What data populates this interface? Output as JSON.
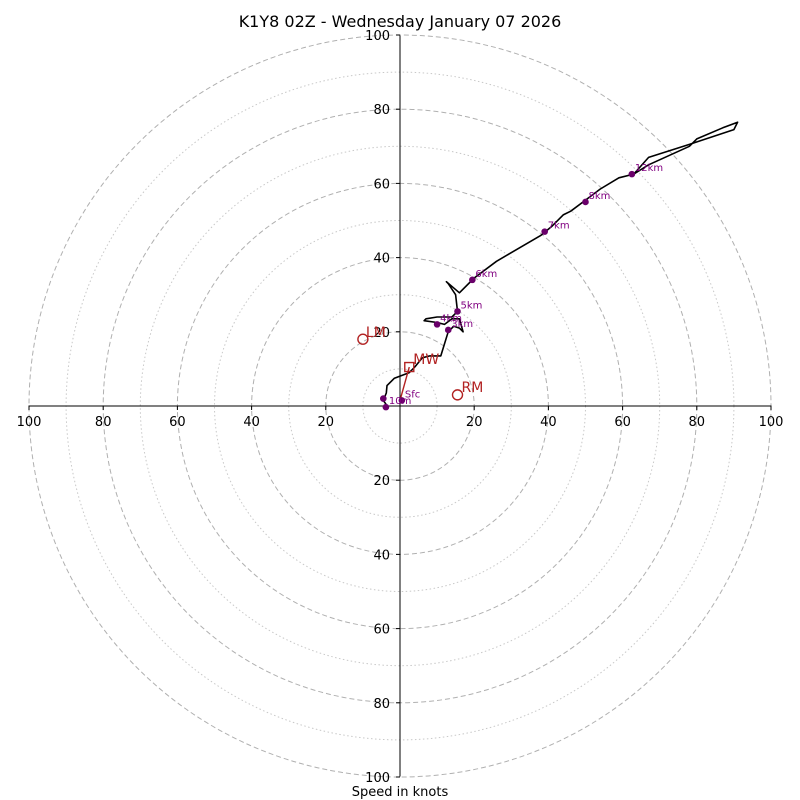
{
  "chart_data": {
    "type": "hodograph",
    "title": "K1Y8 02Z - Wednesday January 07 2026",
    "xlabel": "Speed in knots",
    "xlim": [
      -100,
      100
    ],
    "ylim": [
      -100,
      100
    ],
    "ring_major": [
      20,
      40,
      60,
      80,
      100
    ],
    "ring_minor": [
      10,
      30,
      50,
      70,
      90
    ],
    "x_tick_labels": [
      "100",
      "80",
      "60",
      "40",
      "20",
      "20",
      "40",
      "60",
      "80",
      "100"
    ],
    "x_tick_values": [
      -100,
      -80,
      -60,
      -40,
      -20,
      20,
      40,
      60,
      80,
      100
    ],
    "y_tick_labels": [
      "100",
      "80",
      "60",
      "40",
      "20",
      "20",
      "40",
      "60",
      "80",
      "100"
    ],
    "y_tick_values": [
      100,
      80,
      60,
      40,
      20,
      -20,
      -40,
      -60,
      -80,
      -100
    ],
    "hodograph_trace": [
      [
        -4.5,
        -0.5
      ],
      [
        -3.8,
        0.5
      ],
      [
        -4.5,
        1.5
      ],
      [
        -3.7,
        3.5
      ],
      [
        -3.5,
        5.5
      ],
      [
        -1.5,
        7.5
      ],
      [
        2.5,
        9
      ],
      [
        4,
        10.5
      ],
      [
        6,
        13
      ],
      [
        8,
        13.5
      ],
      [
        11,
        13.5
      ],
      [
        13,
        20
      ],
      [
        14.5,
        21.5
      ],
      [
        16,
        21
      ],
      [
        17,
        20
      ],
      [
        16,
        23.5
      ],
      [
        14,
        23.5
      ],
      [
        12,
        22
      ],
      [
        10,
        22.5
      ],
      [
        6.5,
        23
      ],
      [
        7,
        23.5
      ],
      [
        10,
        24
      ],
      [
        14,
        24
      ],
      [
        15.5,
        25.5
      ],
      [
        15,
        30
      ],
      [
        13,
        33
      ],
      [
        12.5,
        33.5
      ],
      [
        16,
        30.5
      ],
      [
        20,
        34.5
      ],
      [
        26,
        39
      ],
      [
        32,
        42.5
      ],
      [
        38,
        46
      ],
      [
        41,
        48.5
      ],
      [
        44,
        51.5
      ],
      [
        46,
        52.5
      ],
      [
        50,
        55.5
      ],
      [
        54,
        58.5
      ],
      [
        59,
        61.5
      ],
      [
        63,
        62.5
      ],
      [
        67,
        67
      ],
      [
        78,
        70.5
      ],
      [
        90,
        74.5
      ],
      [
        91,
        76.5
      ],
      [
        87,
        75
      ],
      [
        80,
        72
      ],
      [
        78,
        70
      ],
      [
        67,
        65
      ],
      [
        63,
        62.5
      ]
    ],
    "height_points": [
      {
        "label": "Sfc",
        "u": 0.5,
        "v": 1.5
      },
      {
        "label": "10m",
        "u": -3.8,
        "v": -0.3
      },
      {
        "label": "",
        "u": -4.5,
        "v": 2
      },
      {
        "label": "3km",
        "u": 13,
        "v": 20.5
      },
      {
        "label": "4km",
        "u": 10,
        "v": 22
      },
      {
        "label": "5km",
        "u": 15.5,
        "v": 25.5
      },
      {
        "label": "6km",
        "u": 19.5,
        "v": 34
      },
      {
        "label": "7km",
        "u": 39,
        "v": 47
      },
      {
        "label": "8km",
        "u": 50,
        "v": 55
      },
      {
        "label": "12km",
        "u": 62.5,
        "v": 62.5
      }
    ],
    "storm_motion": {
      "RM": {
        "label": "RM",
        "u": 15.5,
        "v": 3
      },
      "LM": {
        "label": "LM",
        "u": -10,
        "v": 18
      },
      "MW": {
        "label": "MW",
        "u": 2.5,
        "v": 10.5
      }
    },
    "shear_vector": {
      "from_u": 0,
      "from_v": 1.5,
      "to_u": 2.5,
      "to_v": 10.5
    }
  },
  "colors": {
    "trace": "#000000",
    "height_points": "#6a006a",
    "height_labels": "#800080",
    "storm_motion": "#b22222",
    "rings": "#b0b0b0"
  }
}
